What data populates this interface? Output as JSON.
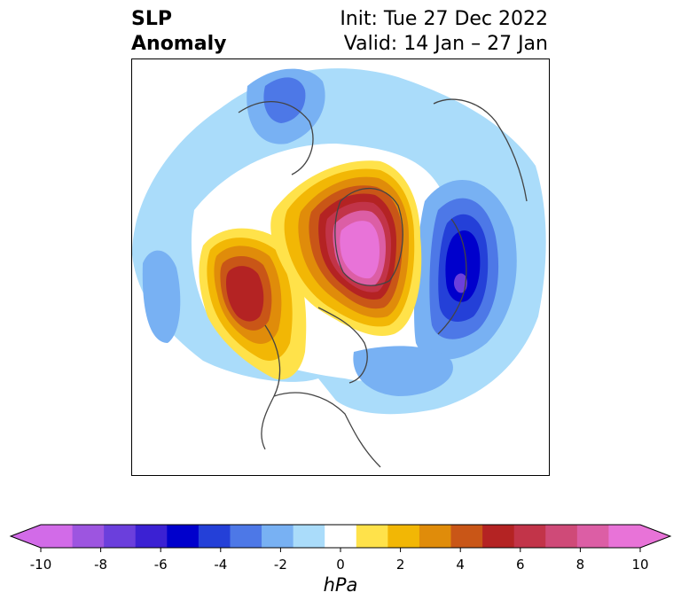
{
  "title": {
    "left_line1": "SLP",
    "left_line2": "Anomaly",
    "right_line1": "Init: Tue 27 Dec 2022",
    "right_line2": "Valid: 14 Jan – 27 Jan"
  },
  "colorbar": {
    "unit": "hPa",
    "ticks": [
      "-10",
      "-8",
      "-6",
      "-4",
      "-2",
      "0",
      "2",
      "4",
      "6",
      "8",
      "10"
    ],
    "levels": [
      -10,
      -9,
      -8,
      -7,
      -6,
      -5,
      -4,
      -3,
      -2,
      -1,
      1,
      2,
      3,
      4,
      5,
      6,
      7,
      8,
      9,
      10
    ],
    "colors": [
      "#d26be8",
      "#9d55e0",
      "#6b3fdc",
      "#3b21d3",
      "#0000cc",
      "#2440d8",
      "#4d78e7",
      "#78b1f3",
      "#aadcfa",
      "#ffffff",
      "#ffe24a",
      "#f2b705",
      "#e08c0a",
      "#c95617",
      "#b42323",
      "#c23449",
      "#cf4a78",
      "#dc5ea5",
      "#e873d8"
    ]
  },
  "map": {
    "projection": "north-polar-stereographic",
    "features": [
      {
        "name": "positive anomaly over Arctic / Greenland-Siberia",
        "peak_hpa": 10
      },
      {
        "name": "positive anomaly over Gulf of Alaska",
        "peak_hpa": 6
      },
      {
        "name": "negative anomaly over northwest Europe / Scandinavia",
        "peak_hpa": -7
      },
      {
        "name": "negative anomaly over eastern North Atlantic",
        "peak_hpa": -3
      }
    ]
  }
}
